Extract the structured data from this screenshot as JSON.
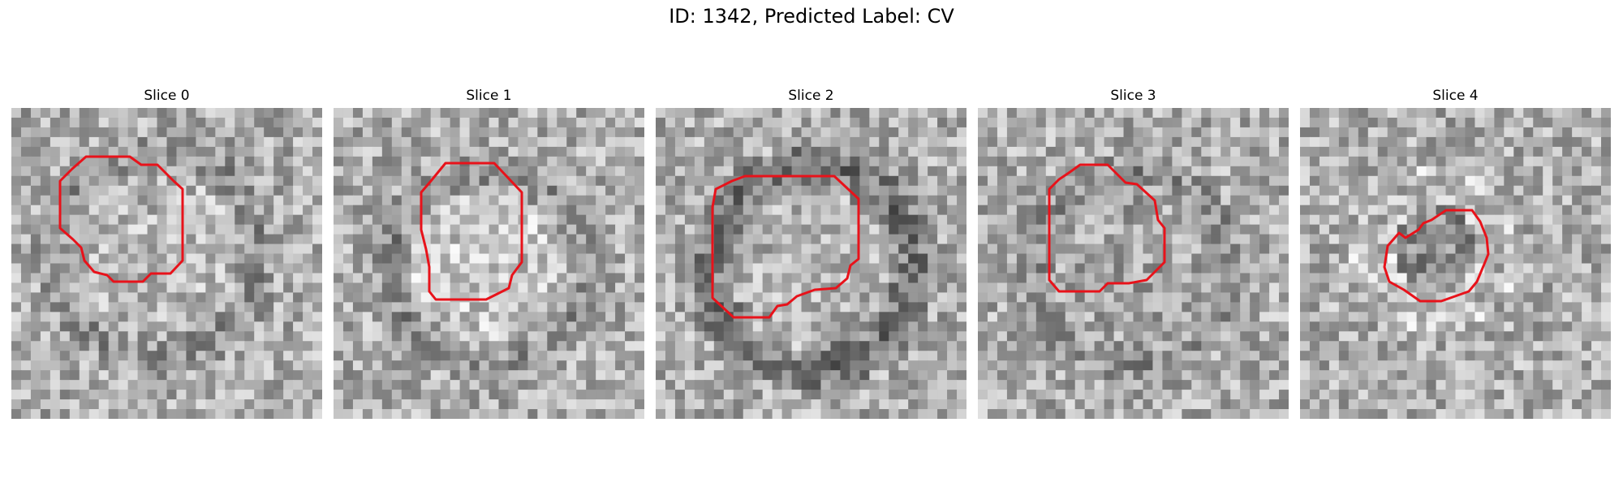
{
  "figure": {
    "title": "ID: 1342, Predicted Label: CV"
  },
  "contour_color": "#e8121a",
  "slices": [
    {
      "label": "Slice 0"
    },
    {
      "label": "Slice 1"
    },
    {
      "label": "Slice 2"
    },
    {
      "label": "Slice 3"
    },
    {
      "label": "Slice 4"
    }
  ]
}
